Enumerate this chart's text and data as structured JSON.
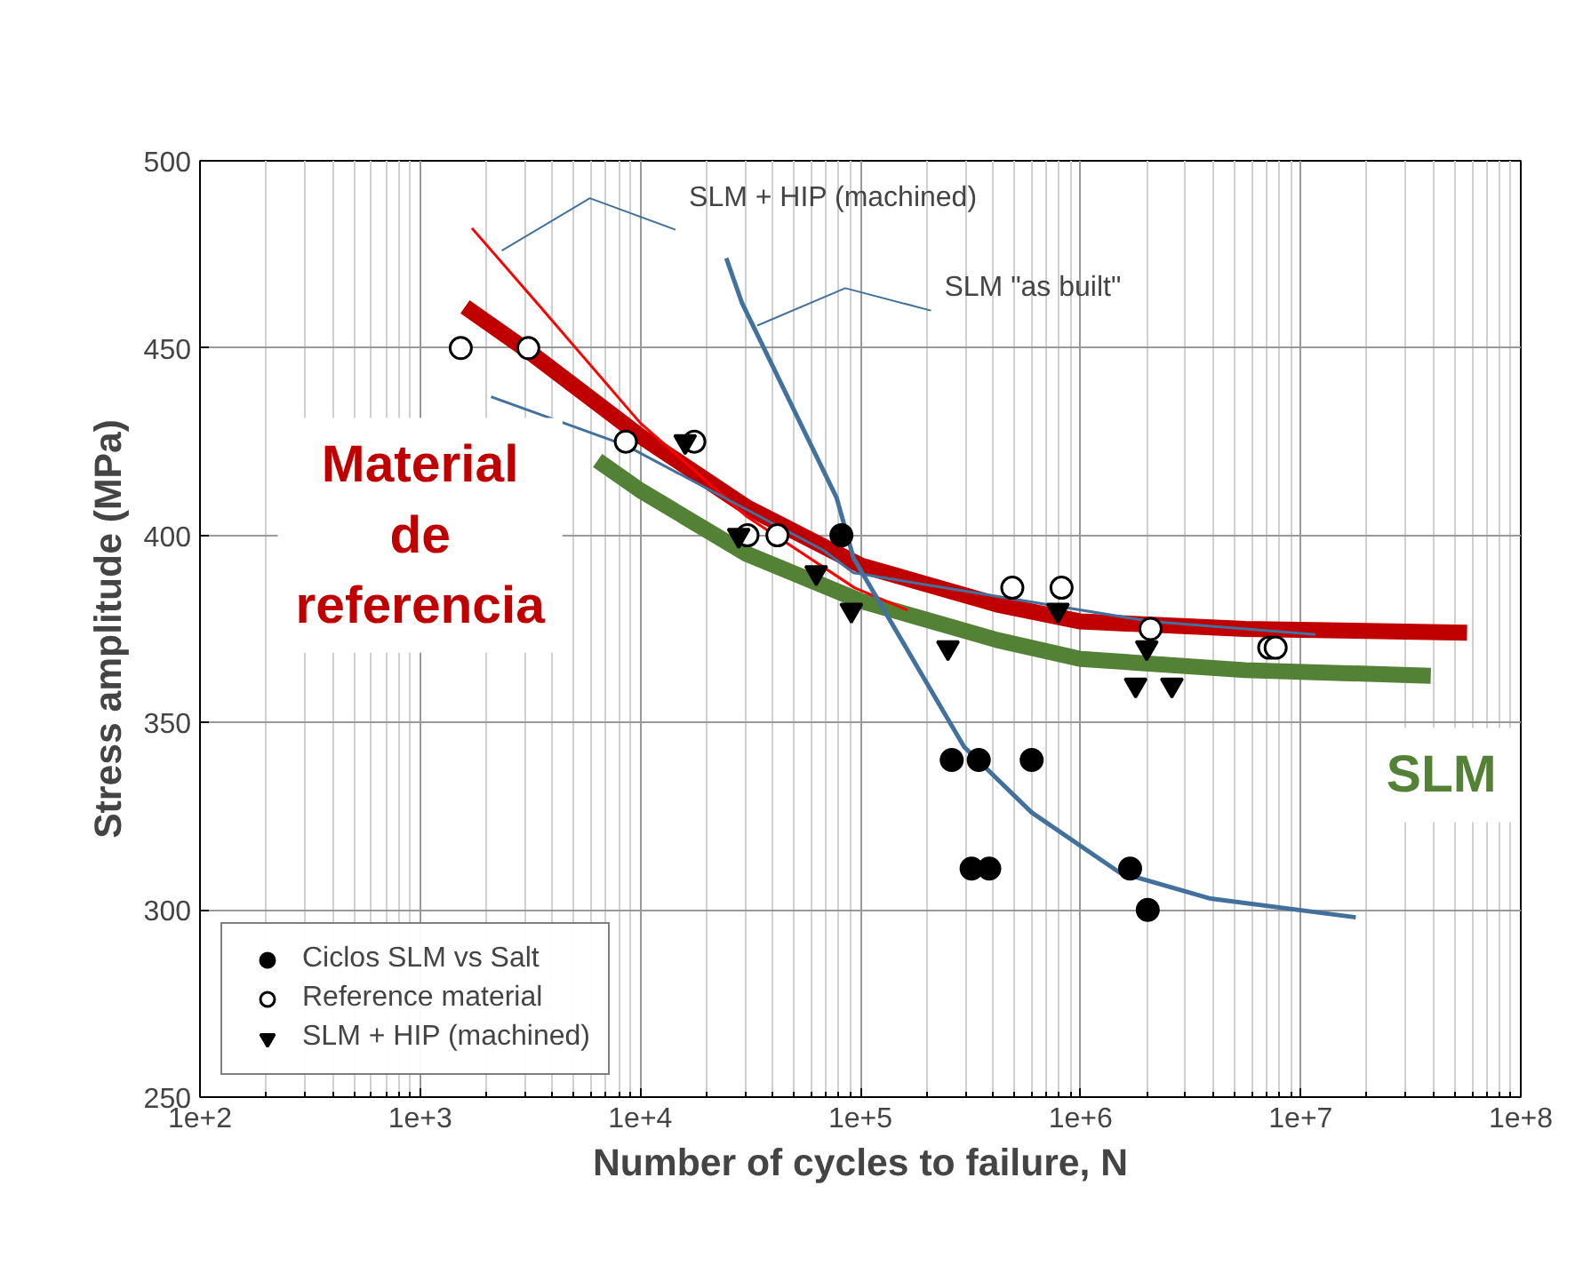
{
  "chart_data": {
    "type": "scatter",
    "xlabel": "Number of cycles to failure, N",
    "ylabel": "Stress amplitude (MPa)",
    "log": "x",
    "xlim": [
      100,
      100000000
    ],
    "ylim": [
      250,
      500
    ],
    "xticks": [
      {
        "value": 100,
        "label": "1e+2"
      },
      {
        "value": 1000,
        "label": "1e+3"
      },
      {
        "value": 10000,
        "label": "1e+4"
      },
      {
        "value": 100000,
        "label": "1e+5"
      },
      {
        "value": 1000000,
        "label": "1e+6"
      },
      {
        "value": 10000000,
        "label": "1e+7"
      },
      {
        "value": 100000000,
        "label": "1e+8"
      }
    ],
    "yticks": [
      250,
      300,
      350,
      400,
      450,
      500
    ],
    "grid": true,
    "legend": "bottom left",
    "series": [
      {
        "type": "line",
        "color": "#c00000",
        "x": [
          1600,
          3300,
          10000,
          30500,
          100000,
          420000,
          1000000,
          5600000,
          57000000
        ],
        "values": [
          461,
          448,
          426.5,
          407.5,
          392,
          381.5,
          377,
          375,
          374
        ]
      },
      {
        "type": "line",
        "color": "#538135",
        "x": [
          6400,
          10000,
          30500,
          100000,
          420000,
          1000000,
          5600000,
          39000000
        ],
        "values": [
          420,
          412,
          395,
          382.5,
          372,
          367,
          364,
          362.5
        ]
      },
      {
        "type": "line",
        "color": "#ff0000",
        "x": [
          1720,
          3400,
          10000,
          30500,
          94000,
          164000
        ],
        "values": [
          482,
          462,
          430,
          405,
          386,
          380
        ]
      },
      {
        "type": "line",
        "color": "#41719c",
        "x": [
          2100,
          8600,
          68000,
          93000,
          2080000,
          11700000
        ],
        "values": [
          437,
          424,
          396,
          390,
          377,
          373.5
        ]
      },
      {
        "type": "line",
        "color": "#41719c",
        "x": [
          24600,
          29000,
          78000,
          93000,
          296000,
          600000,
          1500000,
          3900000,
          17800000
        ],
        "values": [
          474,
          462,
          410,
          394,
          343.5,
          326,
          310,
          303,
          298
        ]
      },
      {
        "name": "Ciclos SLM vs Salt",
        "color": "#000000",
        "marker": "circle",
        "x": [
          82000,
          260000,
          345000,
          600000,
          320000,
          385000,
          1680000,
          2020000
        ],
        "values": [
          400,
          340,
          340,
          340,
          311,
          311,
          311,
          300
        ]
      },
      {
        "name": "Reference material",
        "color": "#ffffff",
        "marker": "circle",
        "x": [
          1530,
          3100,
          8600,
          17600,
          30700,
          42000,
          490000,
          820000,
          2080000,
          7200000,
          7700000
        ],
        "values": [
          450,
          450,
          425,
          425,
          400,
          400,
          386,
          386,
          375,
          370,
          370
        ]
      },
      {
        "name": "SLM + HIP (machined)",
        "color": "#000000",
        "marker": "triangle",
        "x": [
          16000,
          28000,
          63000,
          91000,
          250000,
          790000,
          2000000,
          1780000,
          2600000
        ],
        "values": [
          425,
          400,
          390,
          380,
          370,
          380,
          370,
          360,
          360
        ]
      }
    ],
    "annotations": [
      {
        "text": "SLM + HIP (machined)",
        "x": 2350,
        "y": 476
      },
      {
        "text": "SLM \"as built\"",
        "x": 34000,
        "y": 456
      },
      "Material\nde\nreferencia",
      "SLM"
    ]
  }
}
